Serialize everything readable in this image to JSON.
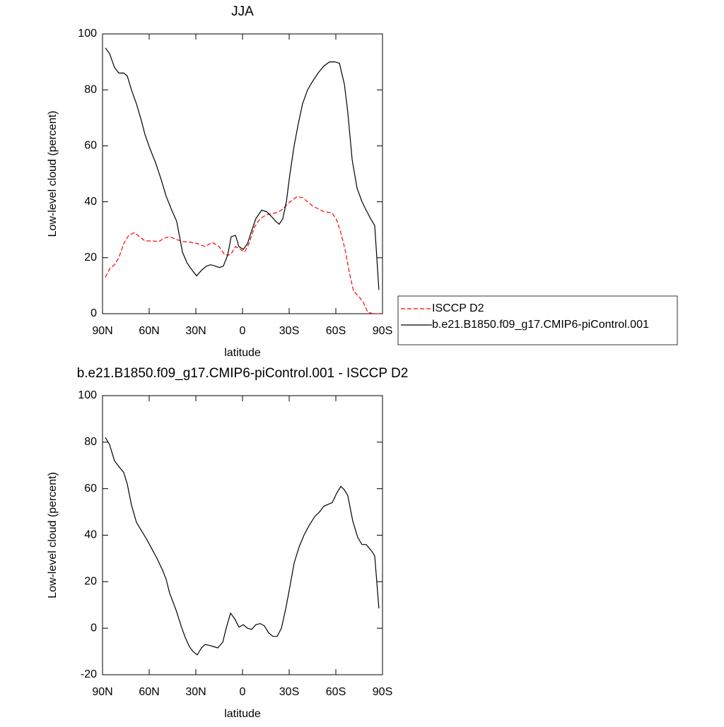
{
  "chart_data": [
    {
      "type": "line",
      "title": "JJA",
      "xlabel": "latitude",
      "ylabel": "Low-level cloud (percent)",
      "xlim": [
        90,
        -90
      ],
      "xticks": [
        {
          "value": 90,
          "label": "90N"
        },
        {
          "value": 60,
          "label": "60N"
        },
        {
          "value": 30,
          "label": "30N"
        },
        0,
        {
          "value": -30,
          "label": "30S"
        },
        {
          "value": -60,
          "label": "60S"
        },
        {
          "value": -90,
          "label": "90S"
        }
      ],
      "ylim": [
        0,
        100
      ],
      "yticks": [
        0,
        20,
        40,
        60,
        80,
        100
      ],
      "legend": "right",
      "series": [
        {
          "name": "ISCCP D2",
          "color": "#ff0000",
          "style": "dashed",
          "x": [
            88.2,
            85.5,
            82.3,
            79.5,
            76.4,
            73.2,
            69.5,
            67.3,
            62.7,
            58.2,
            53.6,
            50.5,
            46.8,
            42.3,
            38.6,
            33.2,
            28.6,
            24.1,
            19.5,
            15,
            11.4,
            7.7,
            4.5,
            1.4,
            -1.4,
            -4.1,
            -7.7,
            -11.4,
            -15.9,
            -21.4,
            -25,
            -30.5,
            -35,
            -38.6,
            -41.8,
            -45,
            -48.6,
            -52.3,
            -57.7,
            -60.5,
            -63.2,
            -65.9,
            -68.6,
            -71.4,
            -75,
            -77.7,
            -80.5,
            -84.1,
            -87.7
          ],
          "values": [
            13,
            16,
            17.5,
            20,
            25,
            28,
            29,
            28,
            26,
            26,
            25.8,
            27,
            27.5,
            26.5,
            25.8,
            25.5,
            25,
            24,
            25.5,
            24,
            21,
            21,
            24,
            23,
            22,
            25,
            31,
            34,
            35.5,
            36,
            37,
            40,
            41.8,
            41.5,
            40,
            38.5,
            37.5,
            36.5,
            36,
            33.5,
            29,
            23,
            15,
            8,
            6,
            4,
            0.5,
            0,
            0
          ]
        },
        {
          "name": "b.e21.B1850.f09_g17.CMIP6-piControl.001",
          "color": "#000000",
          "style": "solid",
          "x": [
            88.2,
            85.5,
            82.3,
            79.5,
            76.4,
            74.1,
            71.4,
            68.2,
            65,
            62.7,
            59.5,
            55.9,
            52.3,
            49.1,
            45.5,
            42.3,
            38.6,
            35.5,
            32.3,
            29.5,
            26.4,
            23.2,
            20.5,
            17.3,
            15,
            12.3,
            9.5,
            7.3,
            4.5,
            2.3,
            -0.5,
            -3.2,
            -5.5,
            -8.6,
            -12.3,
            -15.5,
            -18.2,
            -21.4,
            -23.6,
            -25.9,
            -28.2,
            -30.5,
            -33.2,
            -35.9,
            -38.6,
            -41.8,
            -45,
            -48.6,
            -52.3,
            -55.9,
            -59.5,
            -62.3,
            -65.5,
            -67.7,
            -70.5,
            -73.6,
            -76.8,
            -79.5,
            -82.3,
            -85,
            -87.7
          ],
          "values": [
            95,
            93,
            88,
            86,
            86,
            85,
            80,
            75,
            69,
            64,
            59,
            54,
            48,
            42,
            37,
            33,
            22,
            18,
            15.5,
            13.5,
            15.5,
            17,
            17.5,
            17,
            16.5,
            17,
            21,
            27.5,
            28,
            24,
            23,
            25,
            29,
            34,
            37,
            36.5,
            35,
            33,
            32,
            34,
            40,
            50,
            60,
            68,
            75,
            80,
            83,
            86,
            88.5,
            90,
            90,
            89.5,
            82,
            72,
            55,
            45,
            40,
            37,
            34,
            31.5,
            8.5
          ]
        }
      ]
    },
    {
      "type": "line",
      "title": "b.e21.B1850.f09_g17.CMIP6-piControl.001 - ISCCP D2",
      "xlabel": "latitude",
      "ylabel": "Low-level cloud (percent)",
      "xlim": [
        90,
        -90
      ],
      "xticks": [
        {
          "value": 90,
          "label": "90N"
        },
        {
          "value": 60,
          "label": "60N"
        },
        {
          "value": 30,
          "label": "30N"
        },
        0,
        {
          "value": -30,
          "label": "30S"
        },
        {
          "value": -60,
          "label": "60S"
        },
        {
          "value": -90,
          "label": "90S"
        }
      ],
      "ylim": [
        -20,
        100
      ],
      "yticks": [
        -20,
        0,
        20,
        40,
        60,
        80,
        100
      ],
      "series": [
        {
          "color": "#000000",
          "style": "solid",
          "x": [
            88.2,
            85.5,
            82.3,
            79.5,
            76.4,
            74.1,
            71.4,
            68.2,
            65,
            61.4,
            58.2,
            55,
            51.4,
            49.1,
            46.8,
            44.5,
            42.3,
            39.5,
            36.8,
            34.1,
            31.8,
            29.1,
            26.4,
            24.1,
            20.5,
            18.2,
            15.9,
            12.7,
            10.5,
            7.7,
            5,
            2.3,
            -0.5,
            -3.2,
            -5.9,
            -8.6,
            -11.4,
            -14.1,
            -16.8,
            -19.5,
            -22.3,
            -25,
            -27.7,
            -30.5,
            -33.2,
            -36.4,
            -39.5,
            -42.7,
            -46.4,
            -49.5,
            -52.3,
            -55.9,
            -57.7,
            -60.5,
            -63.2,
            -65.5,
            -67.7,
            -70.9,
            -74.1,
            -76.8,
            -79.5,
            -83.2,
            -85,
            -87.7
          ],
          "values": [
            82,
            79,
            72,
            69.5,
            67,
            62,
            53,
            45.5,
            42,
            38,
            34,
            30,
            25,
            21,
            15,
            11,
            7,
            1,
            -4,
            -8,
            -10,
            -11.5,
            -8.5,
            -7,
            -7.5,
            -8,
            -8.5,
            -6,
            0,
            6.5,
            4,
            0.5,
            1.5,
            0,
            -0.5,
            1.5,
            2,
            1,
            -2,
            -3.5,
            -3.5,
            0,
            8,
            18,
            28,
            35,
            40,
            44,
            48,
            50,
            52.5,
            53.5,
            54,
            58,
            61,
            59.5,
            57,
            46,
            39,
            36,
            36,
            33,
            31,
            8.5
          ]
        }
      ]
    }
  ]
}
